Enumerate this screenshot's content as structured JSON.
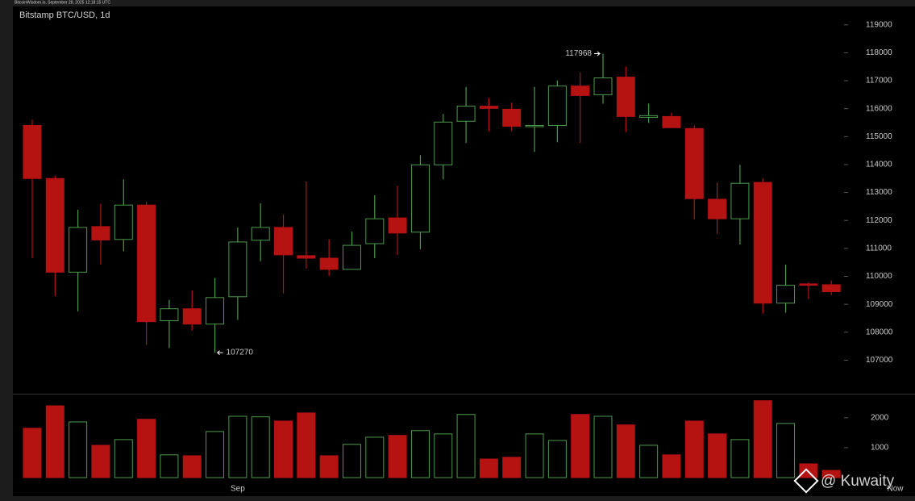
{
  "chart_data": {
    "type": "candlestick",
    "source": "BitcoinWisdom.io, September 28, 2025 12:18:15 UTC",
    "title": "Bitstamp BTC/USD, 1d",
    "categories": [
      null,
      null,
      null,
      null,
      null,
      null,
      null,
      null,
      null,
      "Sep",
      null,
      null,
      null,
      null,
      null,
      null,
      null,
      null,
      null,
      null,
      null,
      null,
      null,
      null,
      null,
      null,
      null,
      null,
      null,
      null,
      null,
      null,
      null,
      null,
      null,
      null
    ],
    "x_end_label": "Now",
    "open": [
      115400,
      113500,
      110150,
      111780,
      111320,
      112550,
      108410,
      108840,
      108290,
      109270,
      111290,
      111750,
      110740,
      110650,
      110250,
      111170,
      112090,
      111580,
      113990,
      115550,
      116090,
      115980,
      115370,
      115400,
      116810,
      116500,
      117130,
      115690,
      115720,
      115290,
      112760,
      112060,
      113360,
      109040,
      109730,
      109700
    ],
    "high": [
      115600,
      113600,
      112380,
      112600,
      113470,
      112670,
      109160,
      109500,
      109940,
      111750,
      112610,
      112210,
      113390,
      111320,
      111600,
      112900,
      113240,
      114340,
      115810,
      116780,
      116380,
      116210,
      116780,
      117010,
      117300,
      117968,
      117500,
      116180,
      115860,
      115400,
      113360,
      113990,
      113500,
      110420,
      109790,
      109850
    ],
    "low": [
      110650,
      109300,
      108750,
      110420,
      110900,
      107550,
      107430,
      108060,
      107270,
      108440,
      110540,
      109390,
      110280,
      110020,
      110250,
      110650,
      110770,
      110970,
      113470,
      114770,
      115200,
      115200,
      114450,
      114800,
      114770,
      116180,
      115170,
      115490,
      115320,
      112040,
      111520,
      111140,
      108670,
      108700,
      109190,
      109330
    ],
    "close": [
      113500,
      110150,
      111750,
      111300,
      112550,
      108380,
      108840,
      108290,
      109240,
      111230,
      111750,
      110770,
      110650,
      110250,
      111110,
      112060,
      111550,
      113990,
      115520,
      116090,
      116010,
      115370,
      115400,
      116810,
      116470,
      117100,
      115720,
      115750,
      115320,
      112780,
      112060,
      113330,
      109040,
      109680,
      109680,
      109450
    ],
    "volume": [
      1650,
      2400,
      1860,
      1080,
      1270,
      1950,
      760,
      730,
      1540,
      2050,
      2030,
      1890,
      2160,
      730,
      1110,
      1350,
      1410,
      1570,
      1460,
      2110,
      620,
      680,
      1460,
      1240,
      2110,
      2050,
      1760,
      1080,
      760,
      1890,
      1460,
      1270,
      2570,
      1810,
      460,
      240
    ],
    "up_color": "#4c9a4c",
    "down_color": "#b51212",
    "ylim": [
      105800,
      119600
    ],
    "yticks": [
      107000,
      108000,
      109000,
      110000,
      111000,
      112000,
      113000,
      114000,
      115000,
      116000,
      117000,
      118000,
      119000
    ],
    "volume_ylim": [
      0,
      2750
    ],
    "volume_yticks": [
      1000,
      2000
    ],
    "high_annotation_index": 25,
    "low_annotation_index": 8,
    "watermark": "@ Kuwaity"
  }
}
